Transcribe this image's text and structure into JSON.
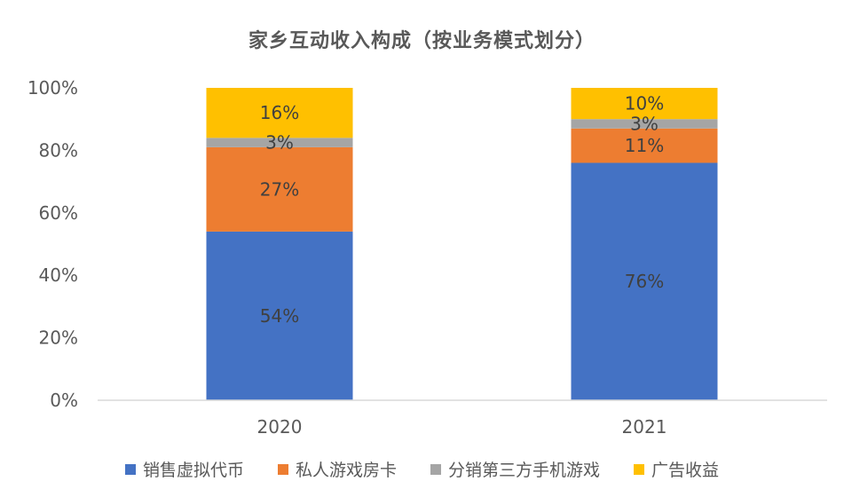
{
  "chart_data": {
    "type": "bar",
    "stacked": true,
    "title": "家乡互动收入构成（按业务模式划分）",
    "categories": [
      "2020",
      "2021"
    ],
    "y_ticks": [
      "0%",
      "20%",
      "40%",
      "60%",
      "80%",
      "100%"
    ],
    "ylim": [
      0,
      100
    ],
    "grid": false,
    "legend_position": "bottom",
    "series": [
      {
        "name": "销售虚拟代币",
        "color": "#4472C4",
        "values": [
          54,
          76
        ],
        "labels": [
          "54%",
          "76%"
        ]
      },
      {
        "name": "私人游戏房卡",
        "color": "#ED7D31",
        "values": [
          27,
          11
        ],
        "labels": [
          "27%",
          "11%"
        ]
      },
      {
        "name": "分销第三方手机游戏",
        "color": "#A5A5A5",
        "values": [
          3,
          3
        ],
        "labels": [
          "3%",
          "3%"
        ]
      },
      {
        "name": "广告收益",
        "color": "#FFC000",
        "values": [
          16,
          10
        ],
        "labels": [
          "16%",
          "10%"
        ]
      }
    ]
  }
}
